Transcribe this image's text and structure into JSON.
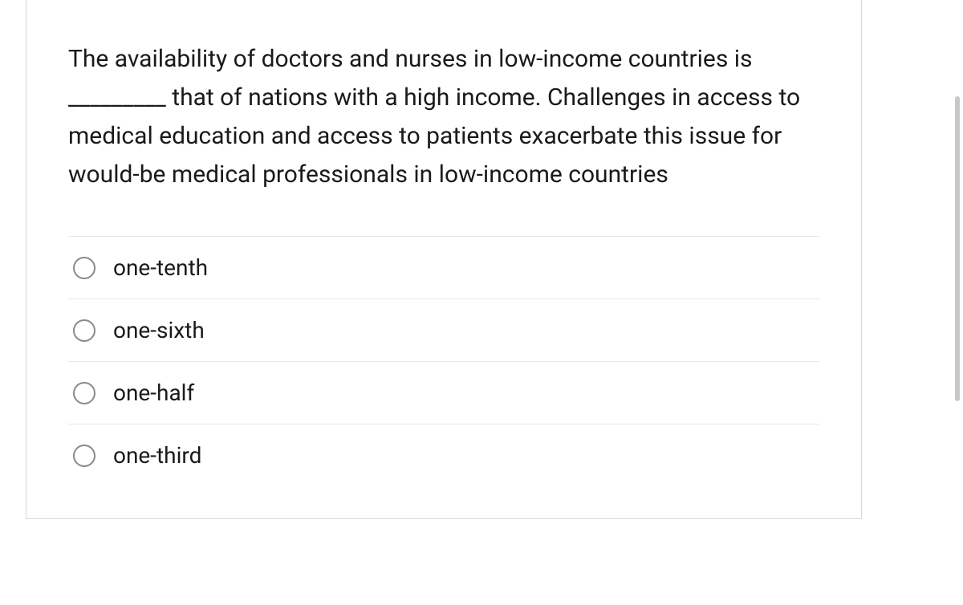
{
  "question": {
    "text": "The availability of doctors and nurses in low-income countries is _________ that of nations with a high income. Challenges in access to medical education and access to patients exacerbate this issue for would-be medical professionals in low-income countries",
    "options": [
      {
        "label": "one-tenth"
      },
      {
        "label": "one-sixth"
      },
      {
        "label": "one-half"
      },
      {
        "label": "one-third"
      }
    ]
  },
  "colors": {
    "border": "#d8d8d8",
    "divider": "#e6e6e6",
    "text": "#1a1a1a",
    "radio_border": "#8a8a8a",
    "scrollbar": "#c8c8c8",
    "background": "#ffffff"
  }
}
